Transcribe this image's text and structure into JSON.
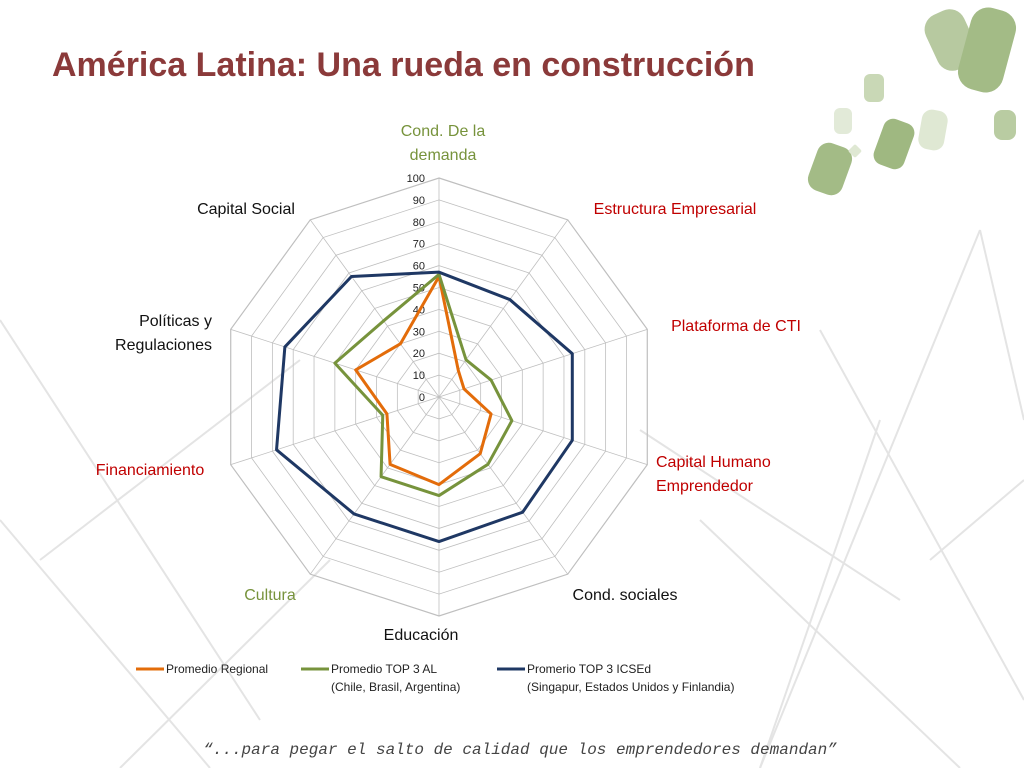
{
  "slide": {
    "title": "América Latina: Una rueda en construcción",
    "footer": "“...para pegar el salto de calidad que los emprendedores demandan”"
  },
  "colors": {
    "title": "#8b3a3a",
    "grid": "#bfbfbf",
    "label_default": "#111111",
    "label_red": "#c00000",
    "label_green": "#77933c",
    "decoration_green": "#a9bf8c"
  },
  "chart_data": {
    "type": "radar",
    "title": "",
    "categories": [
      "Cond. De la demanda",
      "Estructura Empresarial",
      "Plataforma de CTI",
      "Capital Humano Emprendedor",
      "Cond. sociales",
      "Educación",
      "Cultura",
      "Financiamiento",
      "Políticas y Regulaciones",
      "Capital Social"
    ],
    "category_lines": [
      [
        "Cond. De la",
        "demanda"
      ],
      [
        "Estructura Empresarial"
      ],
      [
        "Plataforma de CTI"
      ],
      [
        "Capital Humano",
        "Emprendedor"
      ],
      [
        "Cond. sociales"
      ],
      [
        "Educación"
      ],
      [
        "Cultura"
      ],
      [
        "Financiamiento"
      ],
      [
        "Políticas y",
        "Regulaciones"
      ],
      [
        "Capital Social"
      ]
    ],
    "category_colors": [
      "#77933c",
      "#c00000",
      "#c00000",
      "#c00000",
      "#111111",
      "#111111",
      "#77933c",
      "#c00000",
      "#111111",
      "#111111"
    ],
    "rlim": [
      0,
      100
    ],
    "ticks": [
      "0",
      "10",
      "20",
      "30",
      "40",
      "50",
      "60",
      "70",
      "80",
      "90",
      "100"
    ],
    "grid": true,
    "legend_position": "bottom",
    "series": [
      {
        "name": "Promedio Regional",
        "name_line2": "",
        "color": "#e36c0a",
        "values": [
          55,
          15,
          12,
          25,
          32,
          40,
          38,
          25,
          40,
          30
        ]
      },
      {
        "name": "Promedio TOP 3 AL",
        "name_line2": "(Chile, Brasil,  Argentina)",
        "color": "#77933c",
        "values": [
          56,
          21,
          25,
          35,
          38,
          45,
          45,
          27,
          50,
          43
        ]
      },
      {
        "name": "Promerio TOP 3 ICSEd",
        "name_line2": "(Singapur, Estados Unidos y Finlandia)",
        "color": "#1f3864",
        "values": [
          57,
          55,
          64,
          64,
          65,
          66,
          66,
          78,
          74,
          68
        ]
      }
    ]
  }
}
